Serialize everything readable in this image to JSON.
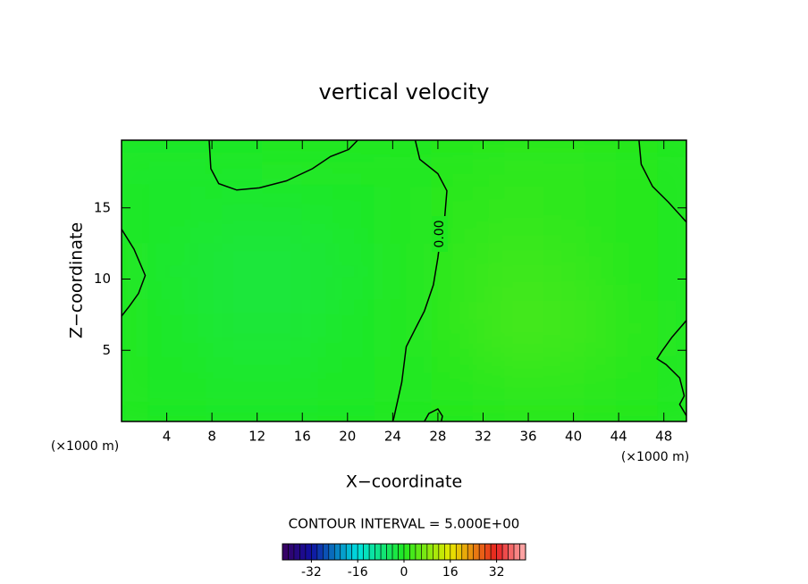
{
  "chart_data": {
    "type": "contour",
    "title": "vertical velocity",
    "xlabel": "X−coordinate",
    "ylabel": "Z−coordinate",
    "x_unit": "(×1000 m)",
    "y_unit": "(×1000 m)",
    "xlim": [
      0,
      50
    ],
    "ylim": [
      0,
      19.75
    ],
    "xticks": [
      4,
      8,
      12,
      16,
      20,
      24,
      28,
      32,
      36,
      40,
      44,
      48
    ],
    "yticks": [
      5,
      10,
      15
    ],
    "x": [
      0,
      5,
      10,
      15,
      20,
      25,
      30,
      35,
      40,
      45,
      50
    ],
    "y": [
      18,
      14,
      10,
      6,
      2
    ],
    "z": [
      [
        -1,
        -1,
        -0.5,
        0,
        0,
        0,
        0.5,
        1,
        1,
        0.5,
        0
      ],
      [
        -0.5,
        -1,
        -1.5,
        -1.5,
        -1,
        0,
        1,
        1.5,
        1,
        0.5,
        0
      ],
      [
        0,
        -1.5,
        -2.5,
        -2.5,
        -1.5,
        0,
        1.5,
        2.5,
        2,
        0.5,
        0
      ],
      [
        0,
        -1,
        -2,
        -2,
        -1,
        0,
        1.5,
        3,
        2.5,
        1,
        0
      ],
      [
        0,
        -0.5,
        -1,
        -1,
        -0.5,
        0,
        0.5,
        1,
        1,
        0.5,
        0
      ]
    ],
    "contours": [
      {
        "level": {
          "value": 0,
          "label": "0.00"
        },
        "color": "#000000",
        "paths": [
          [
            [
              0,
              13.5
            ],
            [
              1.1,
              12.1
            ],
            [
              2.1,
              10.25
            ],
            [
              1.5,
              9
            ],
            [
              0.7,
              8.1
            ],
            [
              0,
              7.4
            ]
          ],
          [
            [
              7.75,
              19.75
            ],
            [
              7.9,
              17.75
            ],
            [
              8.6,
              16.7
            ],
            [
              10.2,
              16.25
            ],
            [
              12.2,
              16.4
            ],
            [
              14.6,
              16.9
            ],
            [
              16.9,
              17.75
            ],
            [
              18.5,
              18.6
            ],
            [
              20.1,
              19.1
            ],
            [
              20.9,
              19.75
            ]
          ],
          [
            [
              26.0,
              19.75
            ],
            [
              26.4,
              18.4
            ],
            [
              28.0,
              17.4
            ],
            [
              28.8,
              16.2
            ],
            [
              28.6,
              14.3
            ],
            [
              28.2,
              12.75
            ],
            [
              28.0,
              11.5
            ],
            [
              27.6,
              9.6
            ],
            [
              26.8,
              7.75
            ],
            [
              26.0,
              6.5
            ],
            [
              25.2,
              5.25
            ],
            [
              24.8,
              2.75
            ],
            [
              24.1,
              0.25
            ],
            [
              24.0,
              0
            ]
          ],
          [
            [
              26.8,
              0
            ],
            [
              27.2,
              0.56
            ],
            [
              28.0,
              0.875
            ],
            [
              28.4,
              0.375
            ],
            [
              28.3,
              0
            ]
          ],
          [
            [
              45.8,
              19.75
            ],
            [
              46.0,
              18.06
            ],
            [
              47.0,
              16.5
            ],
            [
              48.4,
              15.4
            ],
            [
              50,
              14
            ]
          ],
          [
            [
              50,
              7.1
            ],
            [
              48.7,
              5.9
            ],
            [
              47.8,
              4.9
            ],
            [
              47.4,
              4.4
            ],
            [
              48.2,
              4.0
            ],
            [
              49.4,
              3.06
            ],
            [
              49.8,
              1.8
            ],
            [
              49.4,
              1.2
            ],
            [
              50,
              0.4
            ]
          ]
        ]
      }
    ],
    "contour_interval_text": "CONTOUR INTERVAL = 5.000E+00",
    "colorbar": {
      "lim": [
        -42,
        42
      ],
      "ticks": [
        -32,
        -16,
        0,
        16,
        32
      ],
      "colors": [
        [
          -42,
          "#3a0060"
        ],
        [
          -32,
          "#1010a0"
        ],
        [
          -16,
          "#00e0e0"
        ],
        [
          0,
          "#20e820"
        ],
        [
          16,
          "#e8e800"
        ],
        [
          32,
          "#e82020"
        ],
        [
          42,
          "#ffb0b0"
        ]
      ]
    }
  }
}
